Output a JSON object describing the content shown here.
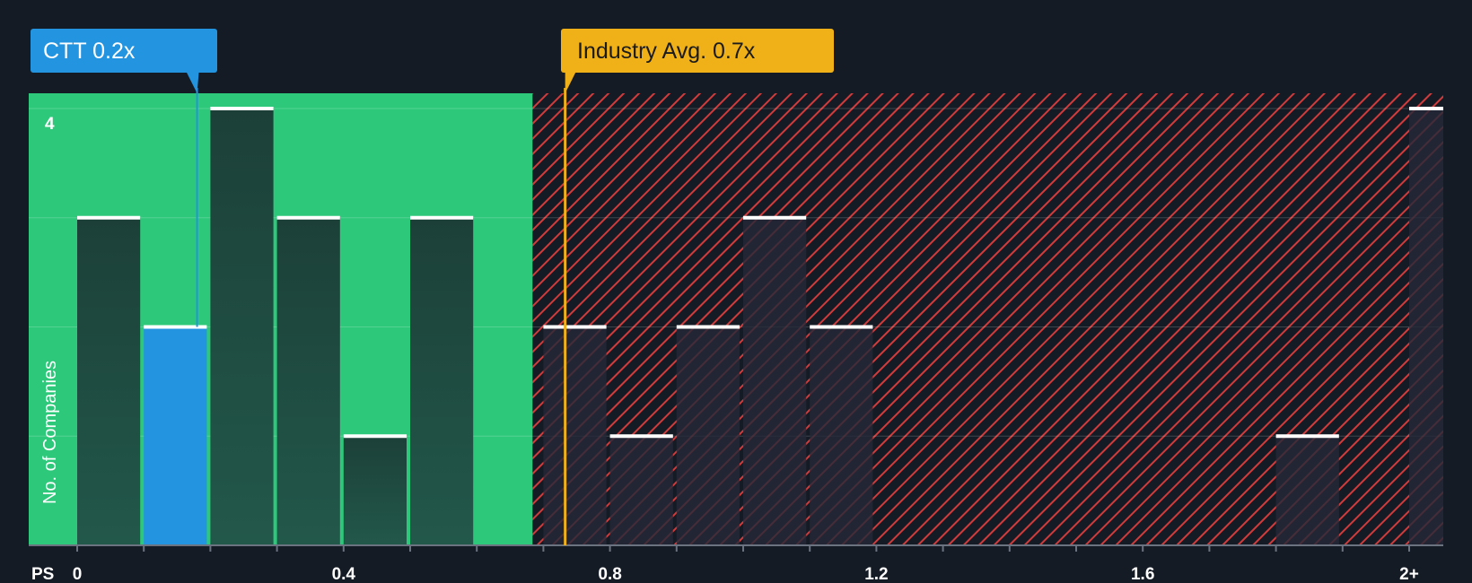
{
  "chart_data": {
    "type": "bar",
    "title": "",
    "xlabel": "PS",
    "ylabel": "No. of Companies",
    "x_ticks": [
      "0",
      "0.4",
      "0.8",
      "1.2",
      "1.6",
      "2+"
    ],
    "y_ticks": [
      "4"
    ],
    "ylim": [
      0,
      4
    ],
    "xlim": [
      -0.07,
      2.05
    ],
    "bin_width": 0.1,
    "bins": [
      {
        "start": 0.0,
        "value": 3
      },
      {
        "start": 0.1,
        "value": 2,
        "highlight": true
      },
      {
        "start": 0.2,
        "value": 4
      },
      {
        "start": 0.3,
        "value": 3
      },
      {
        "start": 0.4,
        "value": 1
      },
      {
        "start": 0.5,
        "value": 3
      },
      {
        "start": 0.6,
        "value": 0
      },
      {
        "start": 0.7,
        "value": 2
      },
      {
        "start": 0.8,
        "value": 1
      },
      {
        "start": 0.9,
        "value": 2
      },
      {
        "start": 1.0,
        "value": 3
      },
      {
        "start": 1.1,
        "value": 2
      },
      {
        "start": 1.2,
        "value": 0
      },
      {
        "start": 1.3,
        "value": 0
      },
      {
        "start": 1.4,
        "value": 0
      },
      {
        "start": 1.5,
        "value": 0
      },
      {
        "start": 1.6,
        "value": 0
      },
      {
        "start": 1.7,
        "value": 0
      },
      {
        "start": 1.8,
        "value": 1
      },
      {
        "start": 1.9,
        "value": 0
      },
      {
        "start": 2.0,
        "value": 4
      }
    ],
    "company": {
      "label": "CTT 0.2x",
      "value": 0.18
    },
    "industry": {
      "label": "Industry Avg. 0.7x",
      "value": 0.73
    },
    "fair_region_end": 0.7,
    "grid": true,
    "colors": {
      "background": "#151b24",
      "fair_zone": "#2ec87a",
      "bar_in_zone": "#1e4b40",
      "bar_highlight": "#2394e0",
      "hatch": "#d13b3b",
      "bar_in_hatch": "#262a38",
      "company_callout": "#2394e0",
      "industry_callout": "#f0b018",
      "industry_text": "#1b1b1b"
    }
  }
}
